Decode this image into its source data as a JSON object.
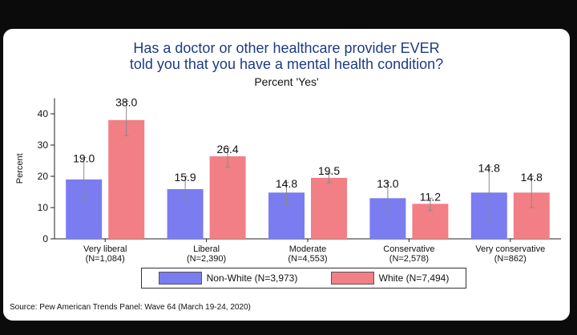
{
  "chart_data": {
    "type": "bar",
    "title_line1": "Has a doctor or other healthcare provider EVER",
    "title_line2": "told you that you have a mental health condition?",
    "subtitle": "Percent 'Yes'",
    "ylabel": "Percent",
    "ylim": [
      0,
      45
    ],
    "yticks": [
      0,
      10,
      20,
      30,
      40
    ],
    "categories": [
      {
        "name": "Very liberal",
        "n": "(N=1,084)"
      },
      {
        "name": "Liberal",
        "n": "(N=2,390)"
      },
      {
        "name": "Moderate",
        "n": "(N=4,553)"
      },
      {
        "name": "Conservative",
        "n": "(N=2,578)"
      },
      {
        "name": "Very conservative",
        "n": "(N=862)"
      }
    ],
    "series": [
      {
        "name": "Non-White (N=3,973)",
        "color": "#7b7cf0",
        "values": [
          19.0,
          15.9,
          14.8,
          13.0,
          14.8
        ],
        "labels": [
          "19.0",
          "15.9",
          "14.8",
          "13.0",
          "14.8"
        ],
        "ci": [
          [
            13,
            26
          ],
          [
            12,
            20
          ],
          [
            11,
            18
          ],
          [
            8,
            18
          ],
          [
            6,
            23
          ]
        ]
      },
      {
        "name": "White (N=7,494)",
        "color": "#f27f85",
        "values": [
          38.0,
          26.4,
          19.5,
          11.2,
          14.8
        ],
        "labels": [
          "38.0",
          "26.4",
          "19.5",
          "11.2",
          "14.8"
        ],
        "ci": [
          [
            33,
            44
          ],
          [
            23,
            29
          ],
          [
            18,
            21
          ],
          [
            9,
            13
          ],
          [
            10,
            20
          ]
        ]
      }
    ],
    "legend_position": "bottom",
    "grid": false
  },
  "source": "Source: Pew American Trends Panel: Wave 64 (March 19-24, 2020)"
}
